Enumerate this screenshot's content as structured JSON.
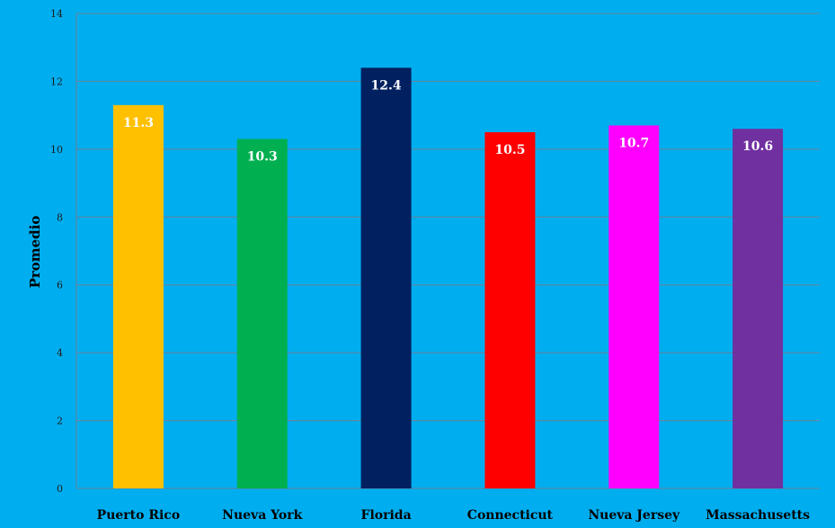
{
  "chart_data": {
    "type": "bar",
    "title": "",
    "xlabel": "",
    "ylabel": "Promedio",
    "ylim": [
      0,
      14
    ],
    "yticks": [
      0,
      2,
      4,
      6,
      8,
      10,
      12,
      14
    ],
    "grid": true,
    "legend": "none",
    "categories": [
      "Puerto Rico",
      "Nueva York",
      "Florida",
      "Connecticut",
      "Nueva Jersey",
      "Massachusetts"
    ],
    "values": [
      11.3,
      10.3,
      12.4,
      10.5,
      10.7,
      10.6
    ],
    "data_labels": [
      "11.3",
      "10.3",
      "12.4",
      "10.5",
      "10.7",
      "10.6"
    ],
    "colors": [
      "#FFC000",
      "#00B050",
      "#002060",
      "#FF0000",
      "#FF00FF",
      "#7030A0"
    ]
  }
}
